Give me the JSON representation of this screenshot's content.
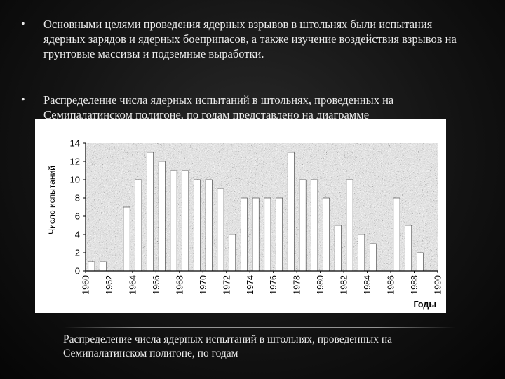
{
  "bullets": [
    {
      "marker": "•",
      "text": "Основными целями проведения ядерных взрывов в штольнях были испытания ядерных зарядов и ядерных боеприпасов, а также изучение воздействия взрывов на грунтовые массивы и подземные выработки."
    },
    {
      "marker": "•",
      "text": "Распределение числа ядерных испытаний в штольнях, проведенных на Семипалатинском полигоне, по годам представлено на диаграмме"
    }
  ],
  "caption": "Распределение числа ядерных испытаний в штольнях, проведенных на Семипалатинском полигоне, по годам",
  "colors": {
    "background": "#141414",
    "text": "#eaeaea",
    "chart_bg": "#ffffff",
    "plot_noise": "#777777",
    "bar": "#ffffff"
  },
  "chart_data": {
    "type": "bar",
    "title": "",
    "xlabel": "Годы",
    "ylabel": "Число испытаний",
    "ylim": [
      0,
      14
    ],
    "yticks": [
      "0",
      "2",
      "4",
      "6",
      "8",
      "10",
      "12",
      "14"
    ],
    "categories": [
      "1961",
      "1962",
      "1963",
      "1964",
      "1965",
      "1966",
      "1967",
      "1968",
      "1969",
      "1970",
      "1971",
      "1972",
      "1973",
      "1974",
      "1975",
      "1976",
      "1977",
      "1978",
      "1979",
      "1980",
      "1981",
      "1982",
      "1983",
      "1984",
      "1985",
      "1986",
      "1987",
      "1988",
      "1989",
      "1990"
    ],
    "tick_labels": [
      "1960",
      "1962",
      "1964",
      "1966",
      "1968",
      "1970",
      "1972",
      "1974",
      "1976",
      "1978",
      "1980",
      "1982",
      "1984",
      "1986",
      "1988",
      "1990"
    ],
    "values": [
      1,
      1,
      0,
      7,
      10,
      13,
      12,
      11,
      11,
      10,
      10,
      9,
      4,
      8,
      8,
      8,
      8,
      13,
      10,
      10,
      8,
      5,
      10,
      4,
      3,
      0,
      8,
      5,
      2,
      0
    ],
    "grid": false,
    "plot_texture": "noise"
  }
}
